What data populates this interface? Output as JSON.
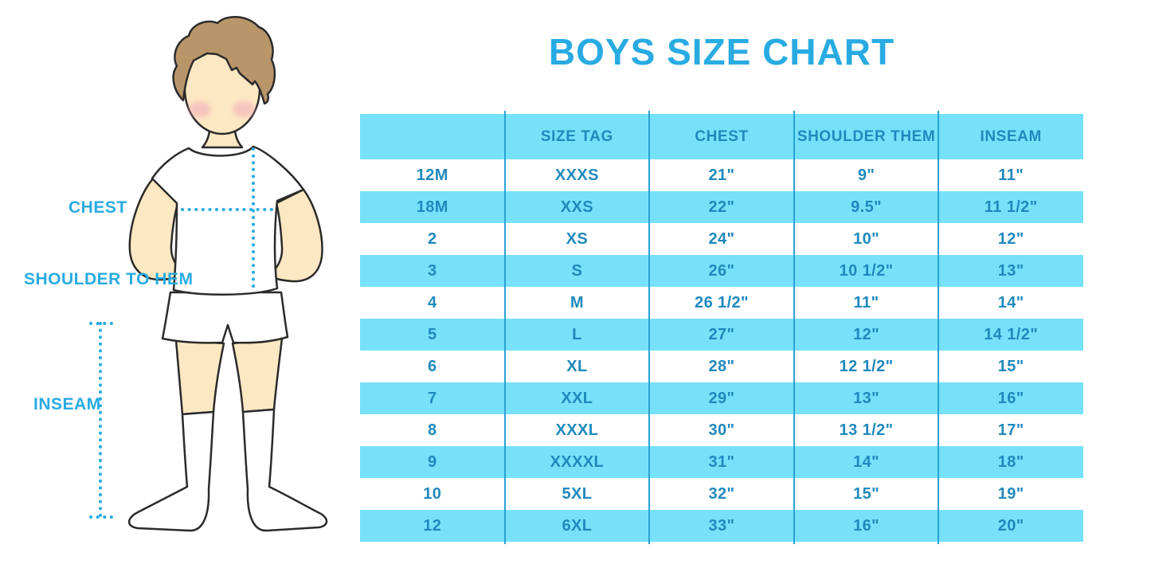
{
  "title": "BOYS SIZE CHART",
  "figure": {
    "chest_label": "CHEST",
    "shoulder_to_hem_label": "SHOULDER TO HEM",
    "inseam_label": "INSEAM"
  },
  "table": {
    "headers": [
      "",
      "SIZE TAG",
      "CHEST",
      "SHOULDER THEM",
      "INSEAM"
    ],
    "rows": [
      [
        "12M",
        "XXXS",
        "21\"",
        "9\"",
        "11\""
      ],
      [
        "18M",
        "XXS",
        "22\"",
        "9.5\"",
        "11 1/2\""
      ],
      [
        "2",
        "XS",
        "24\"",
        "10\"",
        "12\""
      ],
      [
        "3",
        "S",
        "26\"",
        "10 1/2\"",
        "13\""
      ],
      [
        "4",
        "M",
        "26 1/2\"",
        "11\"",
        "14\""
      ],
      [
        "5",
        "L",
        "27\"",
        "12\"",
        "14 1/2\""
      ],
      [
        "6",
        "XL",
        "28\"",
        "12 1/2\"",
        "15\""
      ],
      [
        "7",
        "XXL",
        "29\"",
        "13\"",
        "16\""
      ],
      [
        "8",
        "XXXL",
        "30\"",
        "13 1/2\"",
        "17\""
      ],
      [
        "9",
        "XXXXL",
        "31\"",
        "14\"",
        "18\""
      ],
      [
        "10",
        "5XL",
        "32\"",
        "15\"",
        "19\""
      ],
      [
        "12",
        "6XL",
        "33\"",
        "16\"",
        "20\""
      ]
    ]
  },
  "colors": {
    "accent_blue": "#29ABE2",
    "table_text_blue": "#2089BD",
    "band_cyan": "#76E1F9",
    "divider_blue": "#2BA1D3",
    "skin": "#FCE8C2",
    "hair": "#B9956A",
    "cheek": "#F2A8B8"
  },
  "chart_data": {
    "type": "table",
    "title": "BOYS SIZE CHART",
    "columns": [
      "",
      "SIZE TAG",
      "CHEST",
      "SHOULDER THEM",
      "INSEAM"
    ],
    "rows": [
      [
        "12M",
        "XXXS",
        "21\"",
        "9\"",
        "11\""
      ],
      [
        "18M",
        "XXS",
        "22\"",
        "9.5\"",
        "11 1/2\""
      ],
      [
        "2",
        "XS",
        "24\"",
        "10\"",
        "12\""
      ],
      [
        "3",
        "S",
        "26\"",
        "10 1/2\"",
        "13\""
      ],
      [
        "4",
        "M",
        "26 1/2\"",
        "11\"",
        "14\""
      ],
      [
        "5",
        "L",
        "27\"",
        "12\"",
        "14 1/2\""
      ],
      [
        "6",
        "XL",
        "28\"",
        "12 1/2\"",
        "15\""
      ],
      [
        "7",
        "XXL",
        "29\"",
        "13\"",
        "16\""
      ],
      [
        "8",
        "XXXL",
        "30\"",
        "13 1/2\"",
        "17\""
      ],
      [
        "9",
        "XXXXL",
        "31\"",
        "14\"",
        "18\""
      ],
      [
        "10",
        "5XL",
        "32\"",
        "15\"",
        "19\""
      ],
      [
        "12",
        "6XL",
        "33\"",
        "16\"",
        "20\""
      ]
    ],
    "legend_position": "none",
    "grid": false
  }
}
